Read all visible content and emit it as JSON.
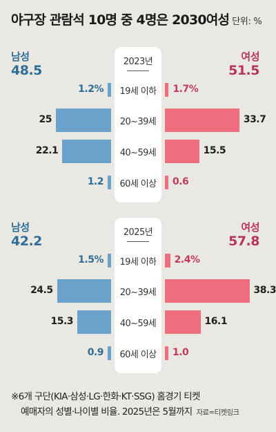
{
  "title": "야구장 관람석 10명 중 4명은 2030여성",
  "unit": "단위: %",
  "chart_data": [
    {
      "type": "bar",
      "year": "2023년",
      "male_label": "남성",
      "male_total": "48.5",
      "female_label": "여성",
      "female_total": "51.5",
      "categories": [
        "19세 이하",
        "20~39세",
        "40~59세",
        "60세 이상"
      ],
      "series": [
        {
          "name": "남성",
          "values": [
            1.2,
            25,
            22.1,
            1.2
          ],
          "labels": [
            "1.2%",
            "25",
            "22.1",
            "1.2"
          ]
        },
        {
          "name": "여성",
          "values": [
            1.7,
            33.7,
            15.5,
            0.6
          ],
          "labels": [
            "1.7%",
            "33.7",
            "15.5",
            "0.6"
          ]
        }
      ]
    },
    {
      "type": "bar",
      "year": "2025년",
      "male_label": "남성",
      "male_total": "42.2",
      "female_label": "여성",
      "female_total": "57.8",
      "categories": [
        "19세 이하",
        "20~39세",
        "40~59세",
        "60세 이상"
      ],
      "series": [
        {
          "name": "남성",
          "values": [
            1.5,
            24.5,
            15.3,
            0.9
          ],
          "labels": [
            "1.5%",
            "24.5",
            "15.3",
            "0.9"
          ]
        },
        {
          "name": "여성",
          "values": [
            2.4,
            38.3,
            16.1,
            1.0
          ],
          "labels": [
            "2.4%",
            "38.3",
            "16.1",
            "1.0"
          ]
        }
      ]
    }
  ],
  "colors": {
    "male": "#6aa2cc",
    "female": "#f06d80",
    "male_text": "#2f6d96",
    "female_text": "#b8345a"
  },
  "footnote": {
    "line1": "※6개 구단(KIA·삼성·LG·한화·KT·SSG) 홈경기 티켓",
    "line2": "예매자의 성별·나이별 비율. 2025년은 5월까지",
    "source": "자료=티켓링크"
  }
}
